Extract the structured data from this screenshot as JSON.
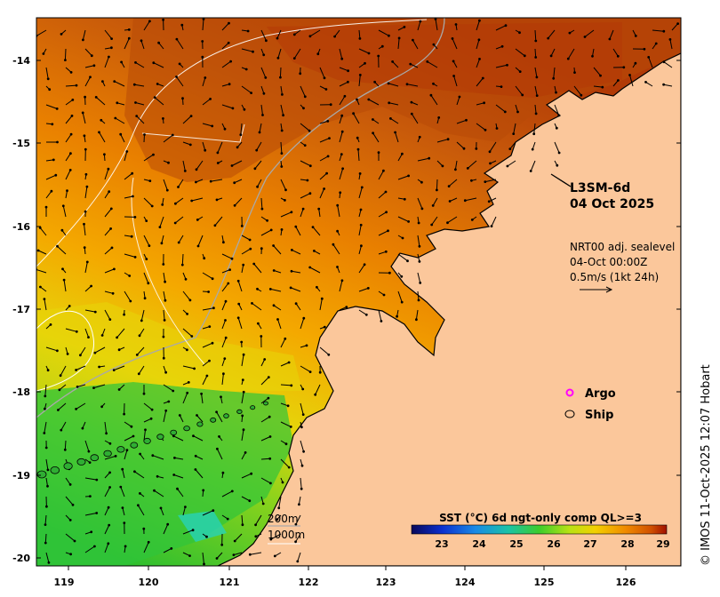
{
  "map": {
    "product_title": "L3SM-6d",
    "product_date": "04 Oct 2025",
    "current_source": "NRT00 adj. sealevel",
    "current_time": "04-Oct 00:00Z",
    "current_scale": "0.5m/s (1kt 24h)",
    "legend": {
      "argo": "Argo",
      "ship": "Ship"
    },
    "isobaths": {
      "shallow": "200m",
      "deep": "1000m"
    },
    "colorbar": {
      "title": "SST (°C) 6d ngt-only comp QL>=3",
      "ticks": [
        "23",
        "24",
        "25",
        "26",
        "27",
        "28",
        "29"
      ]
    },
    "x_ticks": [
      "119",
      "120",
      "121",
      "122",
      "123",
      "124",
      "125",
      "126"
    ],
    "y_ticks": [
      "-14",
      "-15",
      "-16",
      "-17",
      "-18",
      "-19",
      "-20"
    ],
    "credit": "© IMOS 11-Oct-2025 12:07 Hobart",
    "colors": {
      "land": "#fbc79b",
      "sst_warm": "#b53a04",
      "sst_mid": "#ef9a00",
      "sst_cool": "#37c83a",
      "argo": "#ff00ff"
    }
  }
}
